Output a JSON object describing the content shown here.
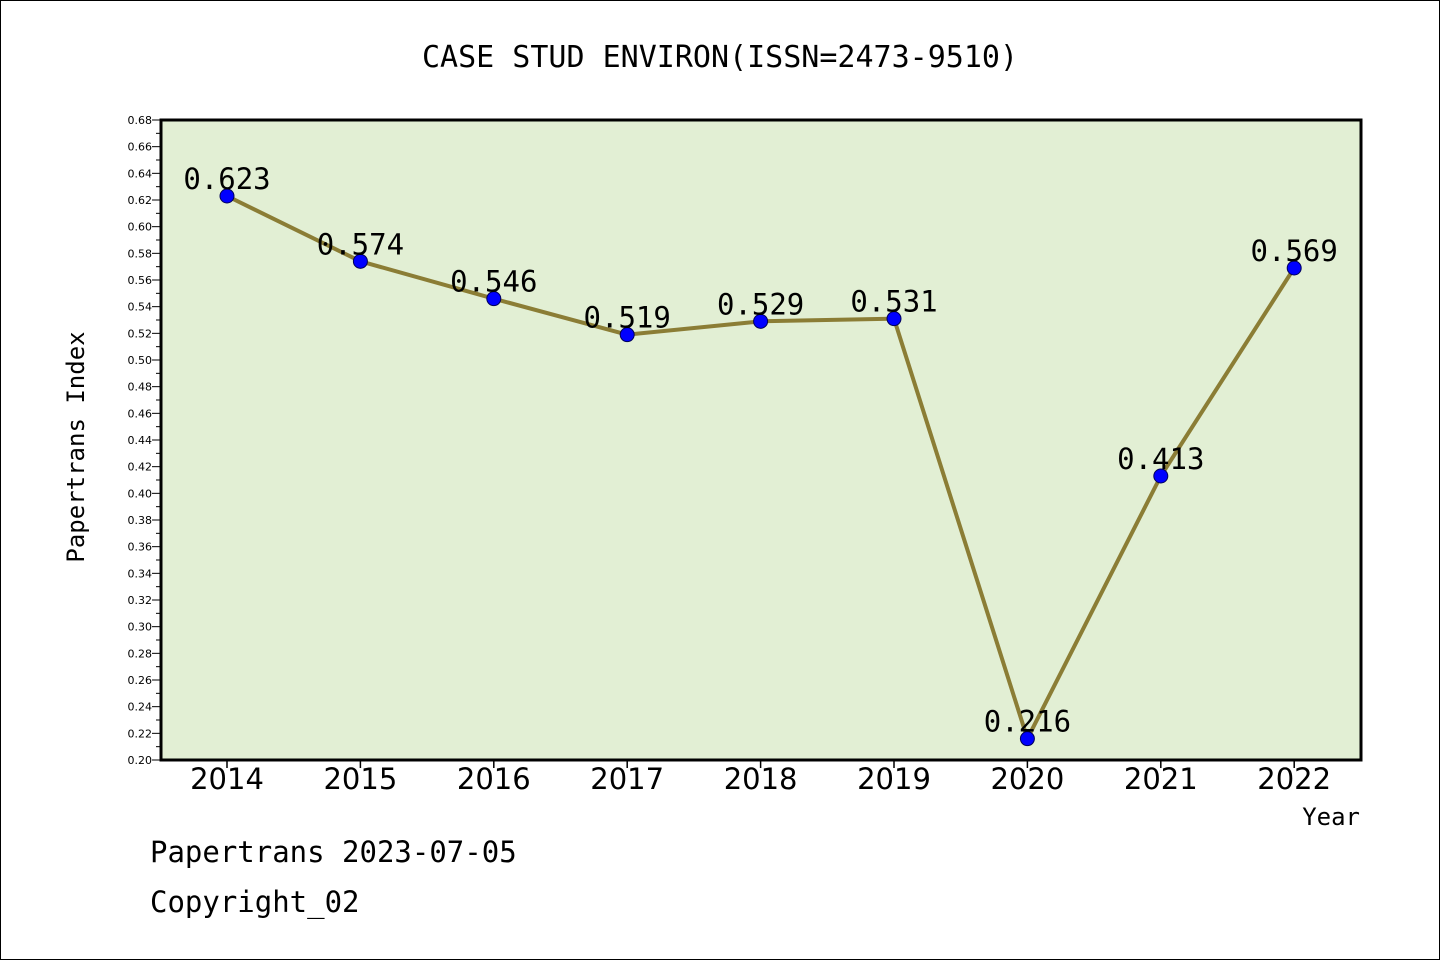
{
  "chart_data": {
    "type": "line",
    "title": "CASE STUD ENVIRON(ISSN=2473-9510)",
    "xlabel": "Year",
    "ylabel": "Papertrans Index",
    "categories": [
      "2014",
      "2015",
      "2016",
      "2017",
      "2018",
      "2019",
      "2020",
      "2021",
      "2022"
    ],
    "values": [
      0.623,
      0.574,
      0.546,
      0.519,
      0.529,
      0.531,
      0.216,
      0.413,
      0.569
    ],
    "data_labels": [
      "0.623",
      "0.574",
      "0.546",
      "0.519",
      "0.529",
      "0.531",
      "0.216",
      "0.413",
      "0.569"
    ],
    "ylim": [
      0.2,
      0.68
    ],
    "yticks": [
      "0.20",
      "0.22",
      "0.24",
      "0.26",
      "0.28",
      "0.30",
      "0.32",
      "0.34",
      "0.36",
      "0.38",
      "0.40",
      "0.42",
      "0.44",
      "0.46",
      "0.48",
      "0.50",
      "0.52",
      "0.54",
      "0.56",
      "0.58",
      "0.60",
      "0.62",
      "0.64",
      "0.66",
      "0.68"
    ],
    "grid": false,
    "colors": {
      "plot_background": "#e2efd4",
      "line": "#8b7d35",
      "marker": "#0000ff",
      "axis": "#000000"
    }
  },
  "footer": {
    "line1": "Papertrans 2023-07-05",
    "line2": "Copyright_02"
  }
}
